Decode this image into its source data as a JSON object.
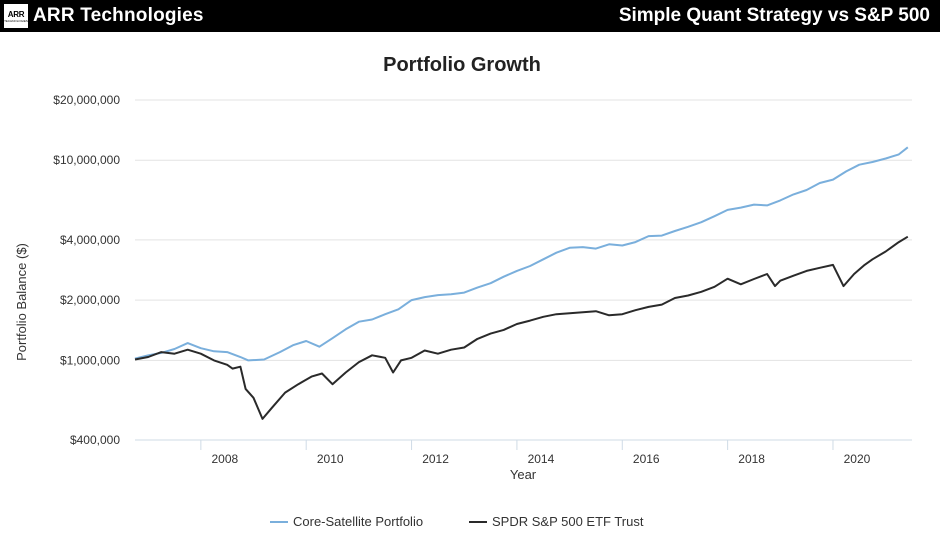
{
  "header": {
    "logo_mark": "ARR",
    "logo_sub": "TECHNOLOGIES",
    "brand": "ARR Technologies",
    "headline": "Simple Quant Strategy vs S&P 500"
  },
  "colors": {
    "header_bg": "#000000",
    "header_text": "#ffffff",
    "series_portfolio": "#7aafdc",
    "series_spy": "#2a2a2a",
    "grid": "#e3e3e3",
    "axis": "#cfdbe6"
  },
  "chart_data": {
    "type": "line",
    "title": "Portfolio Growth",
    "xlabel": "Year",
    "ylabel": "Portfolio Balance ($)",
    "yscale": "log",
    "xlim": [
      2006.75,
      2021.5
    ],
    "ylim": [
      400000,
      20000000
    ],
    "yticks": [
      400000,
      1000000,
      2000000,
      4000000,
      10000000,
      20000000
    ],
    "ytick_labels": [
      "$400,000",
      "$1,000,000",
      "$2,000,000",
      "$4,000,000",
      "$10,000,000",
      "$20,000,000"
    ],
    "xticks": [
      2008,
      2010,
      2012,
      2014,
      2016,
      2018,
      2020
    ],
    "xtick_labels": [
      "2008",
      "2010",
      "2012",
      "2014",
      "2016",
      "2018",
      "2020"
    ],
    "legend_position": "bottom",
    "grid": true,
    "series": [
      {
        "name": "Core-Satellite Portfolio",
        "points": [
          [
            2006.75,
            1020000
          ],
          [
            2007.0,
            1060000
          ],
          [
            2007.25,
            1090000
          ],
          [
            2007.5,
            1140000
          ],
          [
            2007.75,
            1220000
          ],
          [
            2008.0,
            1150000
          ],
          [
            2008.25,
            1110000
          ],
          [
            2008.5,
            1100000
          ],
          [
            2008.75,
            1040000
          ],
          [
            2008.9,
            1000000
          ],
          [
            2009.2,
            1010000
          ],
          [
            2009.5,
            1100000
          ],
          [
            2009.75,
            1190000
          ],
          [
            2010.0,
            1250000
          ],
          [
            2010.25,
            1170000
          ],
          [
            2010.5,
            1290000
          ],
          [
            2010.75,
            1430000
          ],
          [
            2011.0,
            1560000
          ],
          [
            2011.25,
            1600000
          ],
          [
            2011.5,
            1700000
          ],
          [
            2011.75,
            1800000
          ],
          [
            2012.0,
            2000000
          ],
          [
            2012.25,
            2070000
          ],
          [
            2012.5,
            2120000
          ],
          [
            2012.75,
            2140000
          ],
          [
            2013.0,
            2180000
          ],
          [
            2013.25,
            2310000
          ],
          [
            2013.5,
            2430000
          ],
          [
            2013.75,
            2620000
          ],
          [
            2014.0,
            2800000
          ],
          [
            2014.25,
            2960000
          ],
          [
            2014.5,
            3200000
          ],
          [
            2014.75,
            3450000
          ],
          [
            2015.0,
            3650000
          ],
          [
            2015.25,
            3680000
          ],
          [
            2015.5,
            3620000
          ],
          [
            2015.75,
            3800000
          ],
          [
            2016.0,
            3750000
          ],
          [
            2016.25,
            3900000
          ],
          [
            2016.5,
            4180000
          ],
          [
            2016.75,
            4200000
          ],
          [
            2017.0,
            4430000
          ],
          [
            2017.25,
            4650000
          ],
          [
            2017.5,
            4900000
          ],
          [
            2017.75,
            5250000
          ],
          [
            2018.0,
            5650000
          ],
          [
            2018.25,
            5800000
          ],
          [
            2018.5,
            6000000
          ],
          [
            2018.75,
            5950000
          ],
          [
            2019.0,
            6300000
          ],
          [
            2019.25,
            6750000
          ],
          [
            2019.5,
            7100000
          ],
          [
            2019.75,
            7700000
          ],
          [
            2020.0,
            8000000
          ],
          [
            2020.25,
            8800000
          ],
          [
            2020.5,
            9500000
          ],
          [
            2020.75,
            9800000
          ],
          [
            2021.0,
            10200000
          ],
          [
            2021.25,
            10700000
          ],
          [
            2021.42,
            11600000
          ]
        ]
      },
      {
        "name": "SPDR S&P 500 ETF Trust",
        "points": [
          [
            2006.75,
            1010000
          ],
          [
            2007.0,
            1040000
          ],
          [
            2007.25,
            1100000
          ],
          [
            2007.5,
            1080000
          ],
          [
            2007.75,
            1130000
          ],
          [
            2008.0,
            1080000
          ],
          [
            2008.25,
            1000000
          ],
          [
            2008.5,
            950000
          ],
          [
            2008.6,
            910000
          ],
          [
            2008.75,
            930000
          ],
          [
            2008.85,
            720000
          ],
          [
            2009.0,
            650000
          ],
          [
            2009.17,
            510000
          ],
          [
            2009.35,
            580000
          ],
          [
            2009.6,
            690000
          ],
          [
            2009.85,
            760000
          ],
          [
            2010.1,
            830000
          ],
          [
            2010.3,
            860000
          ],
          [
            2010.5,
            760000
          ],
          [
            2010.75,
            870000
          ],
          [
            2011.0,
            980000
          ],
          [
            2011.25,
            1060000
          ],
          [
            2011.5,
            1030000
          ],
          [
            2011.65,
            870000
          ],
          [
            2011.8,
            1000000
          ],
          [
            2012.0,
            1030000
          ],
          [
            2012.25,
            1120000
          ],
          [
            2012.5,
            1080000
          ],
          [
            2012.75,
            1130000
          ],
          [
            2013.0,
            1160000
          ],
          [
            2013.25,
            1280000
          ],
          [
            2013.5,
            1360000
          ],
          [
            2013.75,
            1420000
          ],
          [
            2014.0,
            1520000
          ],
          [
            2014.25,
            1580000
          ],
          [
            2014.5,
            1650000
          ],
          [
            2014.75,
            1700000
          ],
          [
            2015.0,
            1720000
          ],
          [
            2015.25,
            1740000
          ],
          [
            2015.5,
            1760000
          ],
          [
            2015.75,
            1680000
          ],
          [
            2016.0,
            1700000
          ],
          [
            2016.25,
            1780000
          ],
          [
            2016.5,
            1850000
          ],
          [
            2016.75,
            1900000
          ],
          [
            2017.0,
            2050000
          ],
          [
            2017.25,
            2110000
          ],
          [
            2017.5,
            2200000
          ],
          [
            2017.75,
            2330000
          ],
          [
            2018.0,
            2560000
          ],
          [
            2018.25,
            2400000
          ],
          [
            2018.5,
            2550000
          ],
          [
            2018.75,
            2700000
          ],
          [
            2018.9,
            2350000
          ],
          [
            2019.0,
            2500000
          ],
          [
            2019.25,
            2650000
          ],
          [
            2019.5,
            2800000
          ],
          [
            2019.75,
            2900000
          ],
          [
            2020.0,
            3000000
          ],
          [
            2020.2,
            2350000
          ],
          [
            2020.4,
            2700000
          ],
          [
            2020.6,
            3000000
          ],
          [
            2020.75,
            3200000
          ],
          [
            2021.0,
            3500000
          ],
          [
            2021.25,
            3900000
          ],
          [
            2021.42,
            4150000
          ]
        ]
      }
    ]
  }
}
